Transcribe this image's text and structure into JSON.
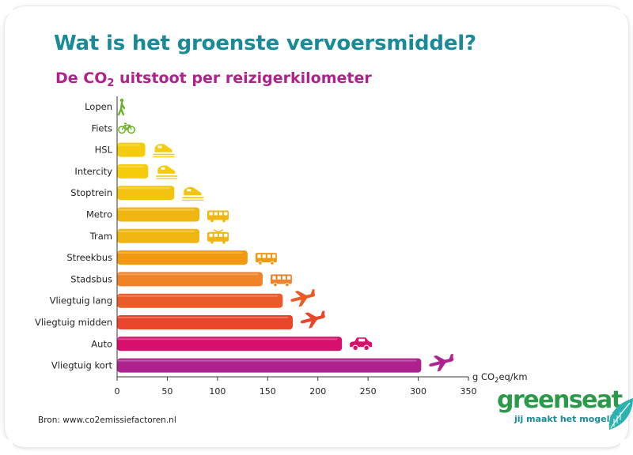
{
  "header": {
    "title": "Wat is het groenste vervoersmiddel?",
    "subtitle_pre": "De CO",
    "subtitle_sub": "2",
    "subtitle_post": " uitstoot per reizigerkilometer"
  },
  "footer": {
    "source": "Bron: www.co2emissiefactoren.nl"
  },
  "logo": {
    "word_part1": "green",
    "word_part2": "seat",
    "tagline": "jij maakt het mogelijk"
  },
  "colors": {
    "title": "#1a8a99",
    "subtitle": "#b0228a",
    "logo_green": "#2a9a48",
    "logo_teal": "#1a8a99"
  },
  "chart_data": {
    "type": "bar",
    "orientation": "horizontal",
    "categories": [
      "Lopen",
      "Fiets",
      "HSL",
      "Intercity",
      "Stoptrein",
      "Metro",
      "Tram",
      "Streekbus",
      "Stadsbus",
      "Vliegtuig lang",
      "Vliegtuig midden",
      "Auto",
      "Vliegtuig kort"
    ],
    "values": [
      0,
      0,
      28,
      31,
      57,
      82,
      82,
      130,
      145,
      165,
      175,
      224,
      303
    ],
    "icons": [
      "walker-icon",
      "bicycle-icon",
      "train-icon",
      "train-icon",
      "train-icon",
      "metro-icon",
      "tram-icon",
      "bus-icon",
      "bus-icon",
      "airplane-icon",
      "airplane-icon",
      "car-icon",
      "airplane-icon"
    ],
    "colors": [
      "#6ab023",
      "#6ab023",
      "#f5cc0c",
      "#f5cc0c",
      "#f2c40f",
      "#efb612",
      "#efb612",
      "#f29a0f",
      "#ee8328",
      "#eb5b28",
      "#e8452a",
      "#d7116b",
      "#ad228f"
    ],
    "xlim": [
      0,
      350
    ],
    "xticks": [
      0,
      50,
      100,
      150,
      200,
      250,
      300,
      350
    ],
    "xlabel_pre": "g CO",
    "xlabel_sub": "2",
    "xlabel_post": "eq/km",
    "grid": false,
    "legend": false
  }
}
